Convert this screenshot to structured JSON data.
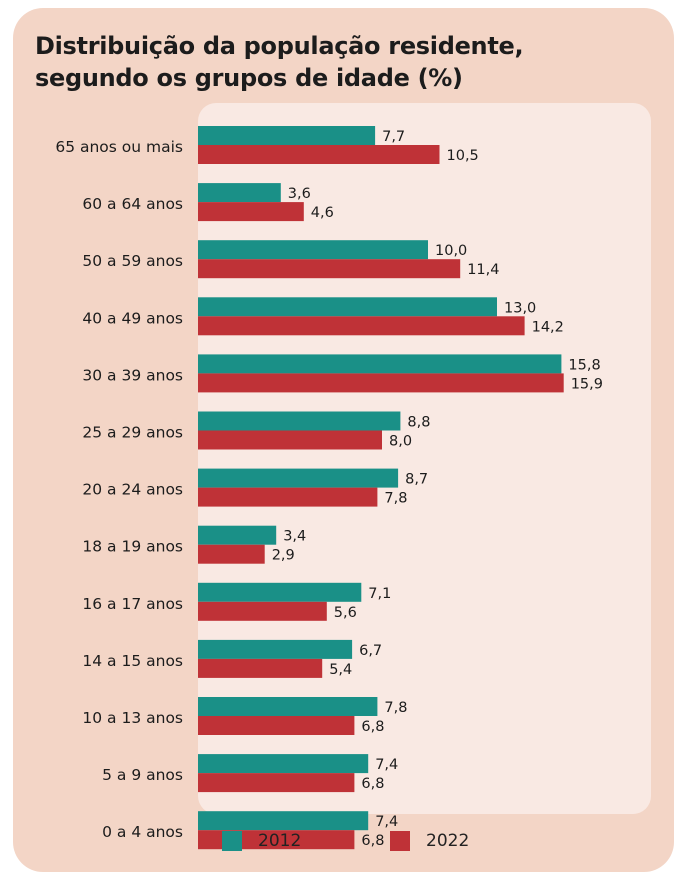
{
  "title": "Distribuição da população residente, segundo os grupos de idade (%)",
  "colors": {
    "series_2012": "#1a9087",
    "series_2022": "#bf3237",
    "card_background": "#f3d5c6",
    "plot_background": "#f9e9e3"
  },
  "legend": [
    {
      "label": "2012"
    },
    {
      "label": "2022"
    }
  ],
  "chart_data": {
    "type": "bar",
    "orientation": "horizontal",
    "title": "Distribuição da população residente, segundo os grupos de idade (%)",
    "categories": [
      "65 anos ou mais",
      "60 a 64 anos",
      "50 a 59 anos",
      "40 a 49 anos",
      "30 a 39 anos",
      "25 a 29 anos",
      "20 a 24 anos",
      "18 a 19 anos",
      "16 a 17 anos",
      "14 a 15 anos",
      "10 a 13 anos",
      "5 a 9 anos",
      "0 a 4 anos"
    ],
    "series": [
      {
        "name": "2012",
        "values": [
          7.7,
          3.6,
          10.0,
          13.0,
          15.8,
          8.8,
          8.7,
          3.4,
          7.1,
          6.7,
          7.8,
          7.4,
          7.4
        ]
      },
      {
        "name": "2022",
        "values": [
          10.5,
          4.6,
          11.4,
          14.2,
          15.9,
          8.0,
          7.8,
          2.9,
          5.6,
          5.4,
          6.8,
          6.8,
          6.8
        ]
      }
    ],
    "data_labels": [
      [
        "7,7",
        "3,6",
        "10,0",
        "13,0",
        "15,8",
        "8,8",
        "8,7",
        "3,4",
        "7,1",
        "6,7",
        "7,8",
        "7,4",
        "7,4"
      ],
      [
        "10,5",
        "4,6",
        "11,4",
        "14,2",
        "15,9",
        "8,0",
        "7,8",
        "2,9",
        "5,6",
        "5,4",
        "6,8",
        "6,8",
        "6,8"
      ]
    ],
    "xlim": [
      0,
      16
    ],
    "grid": false,
    "legend_position": "bottom"
  }
}
